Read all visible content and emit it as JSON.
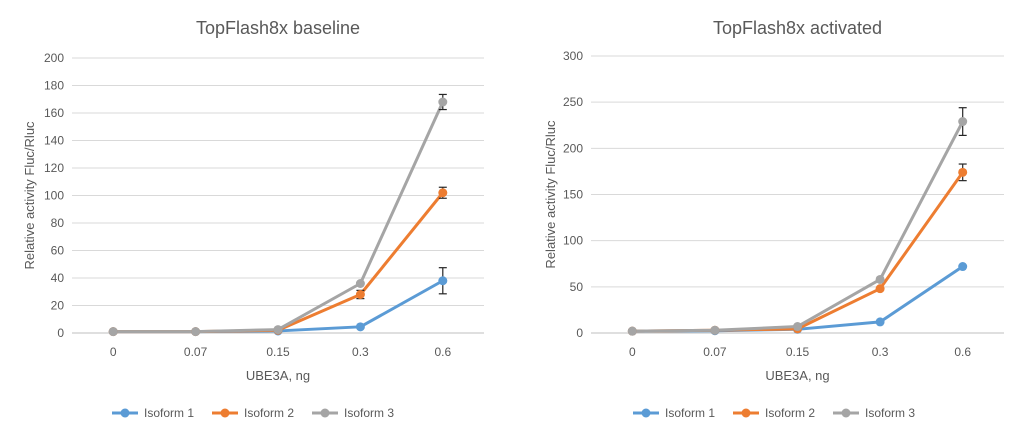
{
  "chart_data": [
    {
      "type": "line",
      "title": "TopFlash8x baseline",
      "xlabel": "UBE3A, ng",
      "ylabel": "Relative activity Fluc/Rluc",
      "categories": [
        "0",
        "0.07",
        "0.15",
        "0.3",
        "0.6"
      ],
      "ylim": [
        0,
        200
      ],
      "yticks": [
        "0",
        "20",
        "40",
        "60",
        "80",
        "100",
        "120",
        "140",
        "160",
        "180",
        "200"
      ],
      "grid": true,
      "legend_position": "bottom",
      "series": [
        {
          "name": "Isoform 1",
          "color": "#5b9bd5",
          "values": [
            1,
            1,
            1.5,
            4.5,
            38
          ],
          "errors": [
            0,
            0,
            0,
            0,
            9.5
          ]
        },
        {
          "name": "Isoform 2",
          "color": "#ed7d31",
          "values": [
            1,
            1,
            2,
            28,
            102
          ],
          "errors": [
            0,
            0,
            0,
            3,
            4
          ]
        },
        {
          "name": "Isoform 3",
          "color": "#a5a5a5",
          "values": [
            1,
            1,
            2.5,
            36,
            168
          ],
          "errors": [
            0,
            0,
            0,
            0,
            5.5
          ]
        }
      ]
    },
    {
      "type": "line",
      "title": "TopFlash8x activated",
      "xlabel": "UBE3A, ng",
      "ylabel": "Relative activity Fluc/Rluc",
      "categories": [
        "0",
        "0.07",
        "0.15",
        "0.3",
        "0.6"
      ],
      "ylim": [
        0,
        300
      ],
      "yticks": [
        "0",
        "50",
        "100",
        "150",
        "200",
        "250",
        "300"
      ],
      "grid": true,
      "legend_position": "bottom",
      "series": [
        {
          "name": "Isoform 1",
          "color": "#5b9bd5",
          "values": [
            2,
            2.5,
            4,
            12,
            72
          ],
          "errors": [
            0,
            0,
            0,
            0,
            0
          ]
        },
        {
          "name": "Isoform 2",
          "color": "#ed7d31",
          "values": [
            2,
            3,
            4.5,
            48,
            174
          ],
          "errors": [
            0,
            0,
            0,
            0,
            9
          ]
        },
        {
          "name": "Isoform 3",
          "color": "#a5a5a5",
          "values": [
            2,
            3,
            7,
            58,
            229
          ],
          "errors": [
            0,
            0,
            0,
            0,
            15
          ]
        }
      ]
    }
  ]
}
